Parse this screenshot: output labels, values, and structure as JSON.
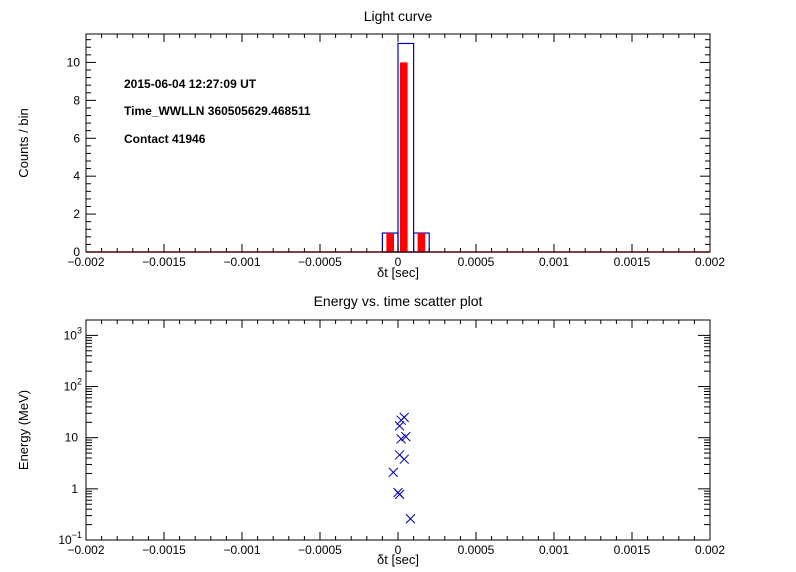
{
  "chart_data": [
    {
      "type": "bar",
      "title": "Light curve",
      "xlabel": "δt [sec]",
      "ylabel": "Counts / bin",
      "xlim": [
        -0.002,
        0.002
      ],
      "ylim": [
        0,
        11.5
      ],
      "x_ticks": [
        "−0.002",
        "−0.0015",
        "−0.001",
        "−0.0005",
        "0",
        "0.0005",
        "0.001",
        "0.0015",
        "0.002"
      ],
      "y_ticks": [
        "0",
        "2",
        "4",
        "6",
        "8",
        "10"
      ],
      "annotations": [
        "2015-06-04 12:27:09 UT",
        "Time_WWLLN 360505629.468511",
        "Contact 41946"
      ],
      "colors": {
        "outline": "#0000cc",
        "fill": "#ff0000"
      },
      "bin_width": 0.0001,
      "series": [
        {
          "style": "outline",
          "bins": [
            {
              "x0": -0.0001,
              "value": 1
            },
            {
              "x0": 0.0,
              "value": 11
            },
            {
              "x0": 0.0001,
              "value": 1
            }
          ]
        },
        {
          "style": "filled",
          "bins": [
            {
              "x0": -0.0001,
              "value": 1
            },
            {
              "x0": 0.0,
              "value": 10
            },
            {
              "x0": 0.0001,
              "value": 1
            }
          ]
        }
      ]
    },
    {
      "type": "scatter",
      "title": "Energy vs. time scatter plot",
      "xlabel": "δt [sec]",
      "ylabel": "Energy (MeV)",
      "xlim": [
        -0.002,
        0.002
      ],
      "ylim": [
        0.1,
        2000
      ],
      "y_scale": "log",
      "x_ticks": [
        "−0.002",
        "−0.0015",
        "−0.001",
        "−0.0005",
        "0",
        "0.0005",
        "0.001",
        "0.0015",
        "0.002"
      ],
      "y_ticks": [
        {
          "base": "10",
          "exp": "−1",
          "value": 0.1
        },
        {
          "base": "1",
          "exp": "",
          "value": 1
        },
        {
          "base": "10",
          "exp": "",
          "value": 10
        },
        {
          "base": "10",
          "exp": "2",
          "value": 100
        },
        {
          "base": "10",
          "exp": "3",
          "value": 1000
        }
      ],
      "marker": "x",
      "marker_color": "#0000aa",
      "points": [
        {
          "x": 4e-05,
          "y": 25
        },
        {
          "x": 2e-05,
          "y": 22
        },
        {
          "x": 1e-05,
          "y": 17
        },
        {
          "x": 5e-05,
          "y": 10.5
        },
        {
          "x": 2e-05,
          "y": 9.5
        },
        {
          "x": 1e-05,
          "y": 4.6
        },
        {
          "x": 4e-05,
          "y": 3.8
        },
        {
          "x": -3e-05,
          "y": 2.1
        },
        {
          "x": 0.0,
          "y": 0.85
        },
        {
          "x": 1e-05,
          "y": 0.78
        },
        {
          "x": 8e-05,
          "y": 0.26
        }
      ]
    }
  ]
}
